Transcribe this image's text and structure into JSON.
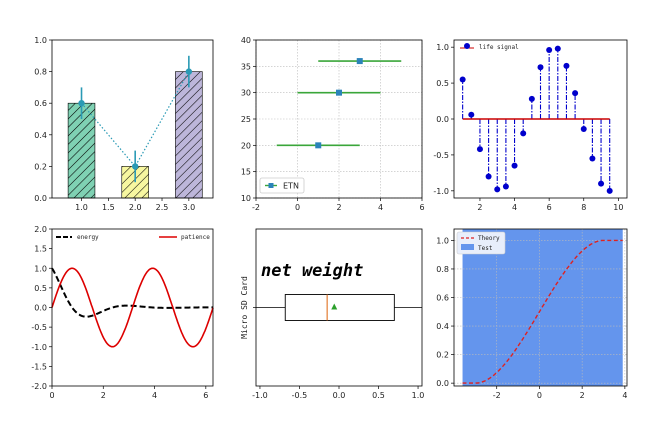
{
  "chart_data": [
    {
      "type": "bar",
      "categories": [
        1.0,
        2.0,
        3.0
      ],
      "values": [
        0.6,
        0.2,
        0.8
      ],
      "errors": [
        0.1,
        0.1,
        0.1
      ],
      "bar_colors": [
        "#7fd1b3",
        "#f7f7a0",
        "#bdb6da"
      ],
      "line_color": "#2a9ab5",
      "xticks": [
        "1.0",
        "1.5",
        "2.0",
        "2.5",
        "3.0"
      ],
      "yticks": [
        "0.0",
        "0.2",
        "0.4",
        "0.6",
        "0.8",
        "1.0"
      ],
      "xlim": [
        0.45,
        3.45
      ],
      "ylim": [
        0,
        1.0
      ],
      "grid": false
    },
    {
      "type": "scatter",
      "x": [
        1,
        2,
        3
      ],
      "y": [
        20,
        30,
        36
      ],
      "xerr": [
        2,
        2,
        2
      ],
      "color": "#2b83ba",
      "errcolor": "#3aa63a",
      "legend": [
        "ETN"
      ],
      "legend_loc": "lower left",
      "xticks": [
        "-2",
        "0",
        "2",
        "4",
        "6"
      ],
      "yticks": [
        "10",
        "15",
        "20",
        "25",
        "30",
        "35",
        "40"
      ],
      "xlim": [
        -2,
        6
      ],
      "ylim": [
        10,
        40
      ],
      "grid": true
    },
    {
      "type": "stem",
      "x": [
        1.0,
        1.5,
        2.0,
        2.5,
        3.0,
        3.5,
        4.0,
        4.5,
        5.0,
        5.5,
        6.0,
        6.5,
        7.0,
        7.5,
        8.0,
        8.5,
        9.0,
        9.5
      ],
      "y": [
        0.55,
        0.06,
        -0.42,
        -0.8,
        -0.98,
        -0.94,
        -0.65,
        -0.2,
        0.28,
        0.72,
        0.96,
        0.98,
        0.74,
        0.36,
        -0.14,
        -0.55,
        -0.9,
        -1.0
      ],
      "color": "#0000cc",
      "baseline_color": "#cc0000",
      "legend": [
        "life signal"
      ],
      "legend_loc": "upper left",
      "xticks": [
        "0",
        "2",
        "4",
        "6",
        "8",
        "10"
      ],
      "yticks": [
        "-1.0",
        "-0.5",
        "0.0",
        "0.5",
        "1.0"
      ],
      "xlim": [
        0.5,
        10.5
      ],
      "ylim": [
        -1.1,
        1.1
      ],
      "grid": false
    },
    {
      "type": "line",
      "series": [
        {
          "name": "energy",
          "color": "#000000",
          "dashed": true
        },
        {
          "name": "patience",
          "color": "#dd0000",
          "dashed": false
        }
      ],
      "legend_loc": "top",
      "xticks": [
        "0",
        "2",
        "4",
        "6"
      ],
      "yticks": [
        "-2.0",
        "-1.5",
        "-1.0",
        "-0.5",
        "0.0",
        "0.5",
        "1.0",
        "1.5",
        "2.0"
      ],
      "xlim": [
        0,
        6.28
      ],
      "ylim": [
        -2,
        2
      ],
      "grid": false
    },
    {
      "type": "box",
      "title": "net weight",
      "ylabel": "Micro SD Card",
      "q1": -0.68,
      "median": -0.15,
      "q3": 0.7,
      "mean": -0.06,
      "whisker_low": -1.05,
      "whisker_high": 1.05,
      "box_color": "#000000",
      "median_color": "#e07020",
      "mean_color": "#2ca02c",
      "xticks": [
        "-1.0",
        "-0.5",
        "0.0",
        "0.5",
        "1.0"
      ],
      "xlim": [
        -1.05,
        1.05
      ],
      "grid": false
    },
    {
      "type": "area",
      "legend": [
        "Theory",
        "Test"
      ],
      "line_color": "#dd2222",
      "fill_color": "#6495ed",
      "legend_loc": "upper left",
      "xticks": [
        "-2",
        "0",
        "2",
        "4"
      ],
      "yticks": [
        "0.0",
        "0.2",
        "0.4",
        "0.6",
        "0.8",
        "1.0"
      ],
      "xlim": [
        -4.0,
        4.1
      ],
      "ylim": [
        -0.02,
        1.08
      ],
      "grid": true
    }
  ]
}
